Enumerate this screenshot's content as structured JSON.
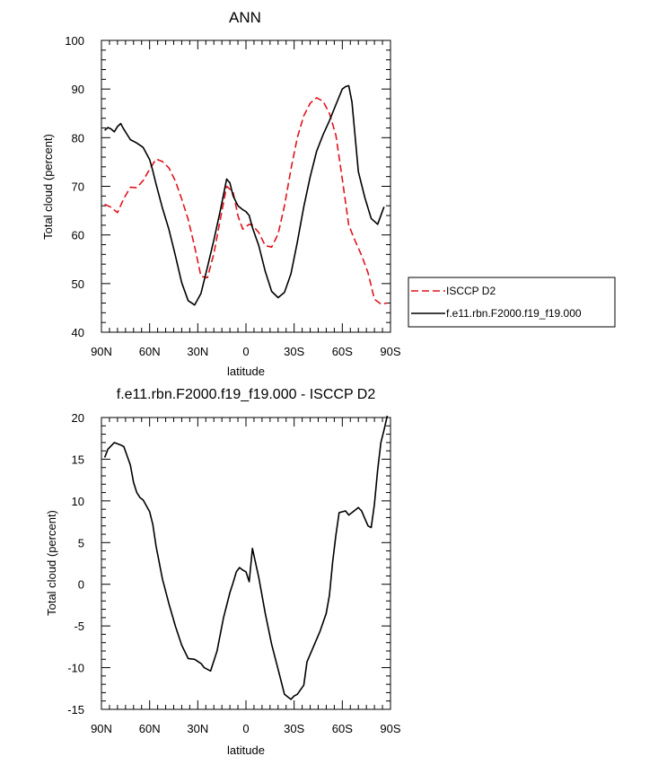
{
  "chart_data": [
    {
      "type": "line",
      "title": "ANN",
      "xlabel": "latitude",
      "ylabel": "Total cloud (percent)",
      "xlim": [
        90,
        -90
      ],
      "ylim": [
        40,
        100
      ],
      "x_ticks": [
        90,
        60,
        30,
        0,
        -30,
        -60,
        -90
      ],
      "x_tick_labels": [
        "90N",
        "60N",
        "30N",
        "0",
        "30S",
        "60S",
        "90S"
      ],
      "y_ticks": [
        40,
        50,
        60,
        70,
        80,
        90,
        100
      ],
      "y_tick_labels": [
        "40",
        "50",
        "60",
        "70",
        "80",
        "90",
        "100"
      ],
      "legend": {
        "placement": "right",
        "entries": [
          {
            "series_index": 0,
            "label": "ISCCP D2"
          },
          {
            "series_index": 1,
            "label": "f.e11.rbn.F2000.f19_f19.000"
          }
        ]
      },
      "series": [
        {
          "name": "ISCCP D2",
          "color": "#e0141e",
          "dash": "dashed",
          "x": [
            88,
            84,
            80,
            76,
            72,
            68,
            64,
            60,
            56,
            52,
            48,
            44,
            40,
            36,
            32,
            28,
            24,
            20,
            16,
            12,
            8,
            5,
            2,
            0,
            -2,
            -4,
            -8,
            -12,
            -16,
            -20,
            -24,
            -28,
            -32,
            -36,
            -40,
            -44,
            -48,
            -52,
            -56,
            -60,
            -64,
            -68,
            -72,
            -76,
            -80,
            -84,
            -88
          ],
          "values": [
            66.3,
            65.7,
            64.6,
            67.5,
            69.8,
            69.7,
            71.2,
            73.5,
            75.6,
            75.1,
            73.8,
            71.1,
            67.4,
            63.2,
            57.6,
            51.5,
            51.2,
            56.1,
            63.2,
            70.0,
            68.8,
            63.9,
            61.2,
            61.7,
            62.2,
            62.0,
            60.5,
            57.8,
            57.5,
            60.2,
            66.0,
            73.5,
            80.0,
            84.5,
            87.1,
            88.2,
            87.5,
            85.0,
            80.5,
            71.5,
            62.0,
            58.8,
            55.8,
            52.2,
            46.8,
            45.8,
            46.0
          ]
        },
        {
          "name": "f.e11.rbn.F2000.f19_f19.000",
          "color": "#000000",
          "dash": "solid",
          "x": [
            88,
            86,
            84,
            82,
            80,
            78,
            76,
            72,
            68,
            64,
            60,
            58,
            56,
            52,
            48,
            44,
            40,
            36,
            32,
            28,
            24,
            20,
            16,
            12,
            10,
            8,
            5,
            2,
            0,
            -2,
            -4,
            -8,
            -12,
            -16,
            -20,
            -24,
            -28,
            -32,
            -36,
            -40,
            -44,
            -48,
            -52,
            -56,
            -60,
            -62,
            -64,
            -66,
            -70,
            -74,
            -78,
            -82,
            -86
          ],
          "values": [
            81.5,
            82.1,
            81.8,
            81.2,
            82.3,
            82.9,
            81.7,
            79.6,
            78.9,
            78.0,
            75.5,
            73.2,
            70.5,
            65.5,
            61.2,
            55.8,
            50.2,
            46.5,
            45.6,
            48.0,
            53.4,
            58.9,
            65.0,
            71.5,
            70.7,
            68.0,
            66.0,
            65.2,
            64.8,
            64.0,
            61.5,
            57.8,
            52.5,
            48.4,
            47.1,
            48.2,
            52.0,
            58.5,
            65.8,
            72.0,
            77.2,
            80.6,
            83.5,
            86.8,
            90.0,
            90.5,
            90.7,
            87.3,
            73.0,
            67.7,
            63.4,
            62.2,
            65.8
          ]
        }
      ]
    },
    {
      "type": "line",
      "title": "f.e11.rbn.F2000.f19_f19.000 - ISCCP D2",
      "xlabel": "latitude",
      "ylabel": "Total cloud (percent)",
      "xlim": [
        90,
        -90
      ],
      "ylim": [
        -15,
        20
      ],
      "x_ticks": [
        90,
        60,
        30,
        0,
        -30,
        -60,
        -90
      ],
      "x_tick_labels": [
        "90N",
        "60N",
        "30N",
        "0",
        "30S",
        "60S",
        "90S"
      ],
      "y_ticks": [
        -15,
        -10,
        -5,
        0,
        5,
        10,
        15,
        20
      ],
      "y_tick_labels": [
        "-15",
        "-10",
        "-5",
        "0",
        "5",
        "10",
        "15",
        "20"
      ],
      "series": [
        {
          "color": "#000000",
          "dash": "solid",
          "x": [
            88,
            86,
            82,
            78,
            76,
            72,
            70,
            68,
            66,
            64,
            60,
            58,
            56,
            52,
            48,
            44,
            40,
            36,
            32,
            28,
            26,
            22,
            18,
            14,
            10,
            8,
            6,
            4,
            2,
            0,
            -2,
            -4,
            -8,
            -12,
            -16,
            -20,
            -24,
            -28,
            -30,
            -32,
            -36,
            -38,
            -42,
            -46,
            -50,
            -52,
            -54,
            -56,
            -58,
            -62,
            -64,
            -66,
            -68,
            -70,
            -72,
            -74,
            -76,
            -78,
            -80,
            -82,
            -84,
            -86,
            -88
          ],
          "values": [
            15.2,
            16.2,
            17.0,
            16.7,
            16.5,
            14.3,
            12.2,
            11.0,
            10.4,
            10.1,
            8.7,
            7.2,
            4.6,
            0.6,
            -2.3,
            -5.0,
            -7.3,
            -8.9,
            -9.0,
            -9.5,
            -10.0,
            -10.4,
            -8.0,
            -4.0,
            -1.0,
            0.2,
            1.5,
            2.0,
            1.7,
            1.5,
            0.3,
            4.3,
            0.8,
            -3.5,
            -7.2,
            -10.2,
            -13.2,
            -13.8,
            -13.4,
            -13.2,
            -12.1,
            -9.3,
            -7.5,
            -5.7,
            -3.5,
            -1.3,
            2.7,
            5.9,
            8.6,
            8.8,
            8.3,
            8.6,
            8.9,
            9.2,
            8.8,
            7.9,
            7.0,
            6.8,
            9.6,
            13.7,
            17.0,
            18.5,
            20.2
          ]
        }
      ]
    }
  ]
}
